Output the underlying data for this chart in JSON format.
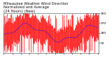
{
  "title_line1": "Milwaukee Weather Wind Direction",
  "title_line2": "Normalized and Average",
  "title_line3": "(24 Hours) (New)",
  "bg_color": "#ffffff",
  "bar_color": "#ff0000",
  "line_color": "#0000ff",
  "ylim": [
    0,
    360
  ],
  "yticks": [
    90,
    180,
    270,
    360
  ],
  "n_points": 200,
  "title_fontsize": 3.8,
  "tick_fontsize": 3.2,
  "bar_linewidth": 0.5
}
